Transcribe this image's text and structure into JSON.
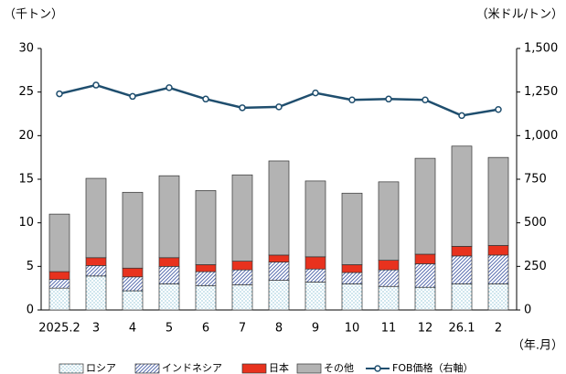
{
  "chart_data": {
    "type": "bar",
    "y_label": "（千トン）",
    "y2_label": "（米ドル/トン）",
    "x_label": "（年.月）",
    "categories": [
      "2025.2",
      "3",
      "4",
      "5",
      "6",
      "7",
      "8",
      "9",
      "10",
      "11",
      "12",
      "26.1",
      "2"
    ],
    "series": [
      {
        "name": "ロシア",
        "color": "#5aa9c4",
        "pattern": "dots",
        "values": [
          2.5,
          3.9,
          2.2,
          3.0,
          2.8,
          2.9,
          3.4,
          3.2,
          3.0,
          2.7,
          2.6,
          3.0,
          3.0
        ]
      },
      {
        "name": "インドネシア",
        "color": "#5a6fb0",
        "pattern": "hatch",
        "values": [
          1.0,
          1.2,
          1.6,
          2.0,
          1.6,
          1.7,
          2.1,
          1.5,
          1.3,
          1.9,
          2.7,
          3.2,
          3.3
        ]
      },
      {
        "name": "日本",
        "color": "#e8321e",
        "values": [
          0.9,
          0.9,
          1.0,
          1.0,
          0.8,
          1.0,
          0.8,
          1.4,
          0.9,
          1.1,
          1.1,
          1.1,
          1.1
        ]
      },
      {
        "name": "その他",
        "color": "#b3b3b3",
        "values": [
          6.6,
          9.1,
          8.7,
          9.4,
          8.5,
          9.9,
          10.8,
          8.7,
          8.2,
          9.0,
          11.0,
          11.5,
          10.1
        ]
      },
      {
        "name": "FOB価格（右軸）",
        "color": "#1f4e6e",
        "type": "line",
        "axis": "y2",
        "values": [
          1240,
          1290,
          1225,
          1275,
          1210,
          1160,
          1165,
          1245,
          1205,
          1210,
          1205,
          1115,
          1150
        ]
      }
    ],
    "ylim": [
      0,
      30
    ],
    "yticks": [
      0,
      5,
      10,
      15,
      20,
      25,
      30
    ],
    "y2lim": [
      0,
      1500
    ],
    "y2ticks": [
      0,
      250,
      500,
      750,
      {
        "value": 1000,
        "label": "1,000"
      },
      {
        "value": 1250,
        "label": "1,250"
      },
      {
        "value": 1500,
        "label": "1,500"
      }
    ],
    "legend": "bottom"
  }
}
